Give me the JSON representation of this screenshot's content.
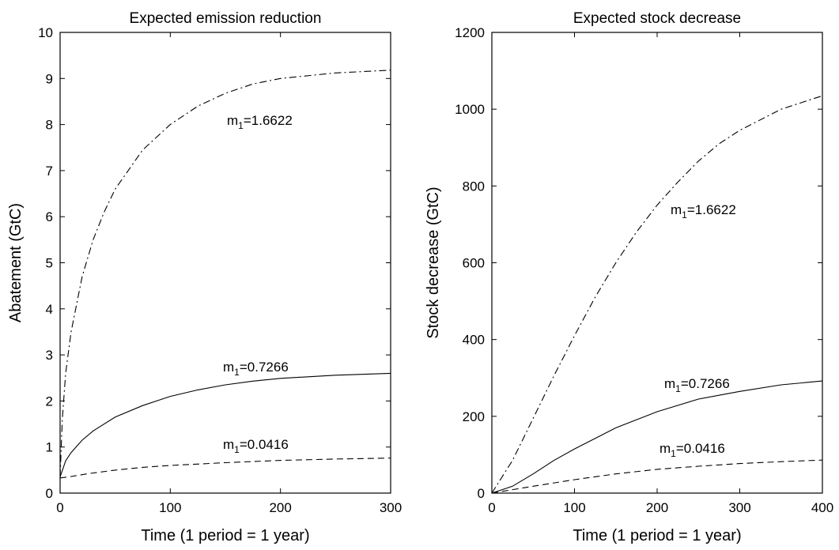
{
  "chart_data": [
    {
      "type": "line",
      "title": "Expected emission reduction",
      "xlabel": "Time (1 period = 1 year)",
      "ylabel": "Abatement (GtC)",
      "xlim": [
        0,
        300
      ],
      "ylim": [
        0,
        10
      ],
      "xticks": [
        "0",
        "100",
        "200",
        "300"
      ],
      "yticks": [
        "0",
        "1",
        "2",
        "3",
        "4",
        "5",
        "6",
        "7",
        "8",
        "9",
        "10"
      ],
      "grid": false,
      "series": [
        {
          "label_prefix": "m",
          "label_sub": "1",
          "label_value": "=1.6622",
          "style": "dashdot",
          "points": [
            [
              0,
              0.35
            ],
            [
              2,
              1.6
            ],
            [
              5,
              2.6
            ],
            [
              10,
              3.5
            ],
            [
              20,
              4.7
            ],
            [
              30,
              5.5
            ],
            [
              40,
              6.1
            ],
            [
              50,
              6.6
            ],
            [
              75,
              7.45
            ],
            [
              100,
              8.0
            ],
            [
              125,
              8.4
            ],
            [
              150,
              8.68
            ],
            [
              175,
              8.88
            ],
            [
              200,
              9.0
            ],
            [
              250,
              9.12
            ],
            [
              300,
              9.18
            ]
          ]
        },
        {
          "label_prefix": "m",
          "label_sub": "1",
          "label_value": "=0.7266",
          "style": "solid",
          "points": [
            [
              0,
              0.35
            ],
            [
              5,
              0.7
            ],
            [
              10,
              0.88
            ],
            [
              20,
              1.15
            ],
            [
              30,
              1.35
            ],
            [
              50,
              1.65
            ],
            [
              75,
              1.9
            ],
            [
              100,
              2.1
            ],
            [
              125,
              2.24
            ],
            [
              150,
              2.35
            ],
            [
              175,
              2.43
            ],
            [
              200,
              2.49
            ],
            [
              250,
              2.56
            ],
            [
              300,
              2.6
            ]
          ]
        },
        {
          "label_prefix": "m",
          "label_sub": "1",
          "label_value": "=0.0416",
          "style": "dashed",
          "points": [
            [
              0,
              0.33
            ],
            [
              10,
              0.36
            ],
            [
              25,
              0.42
            ],
            [
              50,
              0.5
            ],
            [
              75,
              0.56
            ],
            [
              100,
              0.6
            ],
            [
              150,
              0.66
            ],
            [
              200,
              0.71
            ],
            [
              250,
              0.74
            ],
            [
              300,
              0.76
            ]
          ]
        }
      ]
    },
    {
      "type": "line",
      "title": "Expected stock decrease",
      "xlabel": "Time (1 period = 1 year)",
      "ylabel": "Stock decrease (GtC)",
      "xlim": [
        0,
        400
      ],
      "ylim": [
        0,
        1200
      ],
      "xticks": [
        "0",
        "100",
        "200",
        "300",
        "400"
      ],
      "yticks": [
        "0",
        "200",
        "400",
        "600",
        "800",
        "1000",
        "1200"
      ],
      "grid": false,
      "series": [
        {
          "label_prefix": "m",
          "label_sub": "1",
          "label_value": "=1.6622",
          "style": "dashdot",
          "points": [
            [
              0,
              0
            ],
            [
              25,
              85
            ],
            [
              50,
              195
            ],
            [
              75,
              305
            ],
            [
              100,
              410
            ],
            [
              125,
              510
            ],
            [
              150,
              600
            ],
            [
              175,
              680
            ],
            [
              200,
              750
            ],
            [
              225,
              810
            ],
            [
              250,
              865
            ],
            [
              275,
              910
            ],
            [
              300,
              945
            ],
            [
              350,
              1000
            ],
            [
              400,
              1035
            ]
          ]
        },
        {
          "label_prefix": "m",
          "label_sub": "1",
          "label_value": "=0.7266",
          "style": "solid",
          "points": [
            [
              0,
              0
            ],
            [
              25,
              18
            ],
            [
              50,
              50
            ],
            [
              75,
              85
            ],
            [
              100,
              115
            ],
            [
              150,
              170
            ],
            [
              200,
              212
            ],
            [
              250,
              245
            ],
            [
              300,
              265
            ],
            [
              350,
              282
            ],
            [
              400,
              292
            ]
          ]
        },
        {
          "label_prefix": "m",
          "label_sub": "1",
          "label_value": "=0.0416",
          "style": "dashed",
          "points": [
            [
              0,
              0
            ],
            [
              50,
              18
            ],
            [
              100,
              35
            ],
            [
              150,
              50
            ],
            [
              200,
              62
            ],
            [
              250,
              70
            ],
            [
              300,
              77
            ],
            [
              350,
              82
            ],
            [
              400,
              86
            ]
          ]
        }
      ]
    }
  ]
}
